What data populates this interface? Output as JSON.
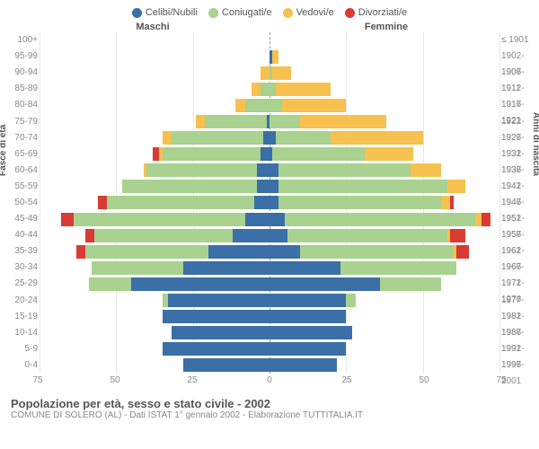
{
  "legend": [
    {
      "label": "Celibi/Nubili",
      "color": "#3a6fa7"
    },
    {
      "label": "Coniugati/e",
      "color": "#a9d18f"
    },
    {
      "label": "Vedovi/e",
      "color": "#f6c14f"
    },
    {
      "label": "Divorziati/e",
      "color": "#d83a34"
    }
  ],
  "header_left": "Maschi",
  "header_right": "Femmine",
  "axis_left_title": "Fasce di età",
  "axis_right_title": "Anni di nascita",
  "xmax": 75,
  "xticks": [
    75,
    50,
    25,
    0,
    25,
    50,
    75
  ],
  "age_groups": [
    "100+",
    "95-99",
    "90-94",
    "85-89",
    "80-84",
    "75-79",
    "70-74",
    "65-69",
    "60-64",
    "55-59",
    "50-54",
    "45-49",
    "40-44",
    "35-39",
    "30-34",
    "25-29",
    "20-24",
    "15-19",
    "10-14",
    "5-9",
    "0-4"
  ],
  "birth_years": [
    "≤ 1901",
    "1902-1906",
    "1907-1911",
    "1912-1916",
    "1917-1921",
    "1922-1926",
    "1927-1931",
    "1932-1936",
    "1937-1941",
    "1942-1946",
    "1947-1951",
    "1952-1956",
    "1957-1961",
    "1962-1966",
    "1967-1971",
    "1972-1976",
    "1977-1981",
    "1982-1986",
    "1987-1991",
    "1992-1996",
    "1997-2001"
  ],
  "rows": [
    {
      "m": [
        0,
        0,
        0,
        0
      ],
      "f": [
        0,
        0,
        0,
        0
      ]
    },
    {
      "m": [
        0,
        0,
        0,
        0
      ],
      "f": [
        1,
        0,
        2,
        0
      ]
    },
    {
      "m": [
        0,
        0,
        3,
        0
      ],
      "f": [
        0,
        1,
        6,
        0
      ]
    },
    {
      "m": [
        0,
        3,
        3,
        0
      ],
      "f": [
        0,
        2,
        18,
        0
      ]
    },
    {
      "m": [
        0,
        8,
        3,
        0
      ],
      "f": [
        0,
        4,
        21,
        0
      ]
    },
    {
      "m": [
        1,
        20,
        3,
        0
      ],
      "f": [
        0,
        10,
        28,
        0
      ]
    },
    {
      "m": [
        2,
        30,
        3,
        0
      ],
      "f": [
        2,
        18,
        30,
        0
      ]
    },
    {
      "m": [
        3,
        32,
        1,
        2
      ],
      "f": [
        1,
        30,
        16,
        0
      ]
    },
    {
      "m": [
        4,
        36,
        1,
        0
      ],
      "f": [
        3,
        43,
        10,
        0
      ]
    },
    {
      "m": [
        4,
        44,
        0,
        0
      ],
      "f": [
        3,
        55,
        6,
        0
      ]
    },
    {
      "m": [
        5,
        48,
        0,
        3
      ],
      "f": [
        3,
        53,
        3,
        1
      ]
    },
    {
      "m": [
        8,
        56,
        0,
        4
      ],
      "f": [
        5,
        62,
        2,
        3
      ]
    },
    {
      "m": [
        12,
        45,
        0,
        3
      ],
      "f": [
        6,
        52,
        1,
        5
      ]
    },
    {
      "m": [
        20,
        40,
        0,
        3
      ],
      "f": [
        10,
        50,
        1,
        4
      ]
    },
    {
      "m": [
        28,
        30,
        0,
        0
      ],
      "f": [
        23,
        38,
        0,
        0
      ]
    },
    {
      "m": [
        45,
        14,
        0,
        0
      ],
      "f": [
        36,
        20,
        0,
        0
      ]
    },
    {
      "m": [
        33,
        2,
        0,
        0
      ],
      "f": [
        25,
        3,
        0,
        0
      ]
    },
    {
      "m": [
        35,
        0,
        0,
        0
      ],
      "f": [
        25,
        0,
        0,
        0
      ]
    },
    {
      "m": [
        32,
        0,
        0,
        0
      ],
      "f": [
        27,
        0,
        0,
        0
      ]
    },
    {
      "m": [
        35,
        0,
        0,
        0
      ],
      "f": [
        25,
        0,
        0,
        0
      ]
    },
    {
      "m": [
        28,
        0,
        0,
        0
      ],
      "f": [
        22,
        0,
        0,
        0
      ]
    }
  ],
  "title": "Popolazione per età, sesso e stato civile - 2002",
  "subtitle": "COMUNE DI SOLERO (AL) - Dati ISTAT 1° gennaio 2002 - Elaborazione TUTTITALIA.IT",
  "colors": {
    "celibi": "#3a6fa7",
    "coniugati": "#a9d18f",
    "vedovi": "#f6c14f",
    "divorziati": "#d83a34",
    "grid": "#e8e8e8",
    "centerline": "#999999"
  }
}
